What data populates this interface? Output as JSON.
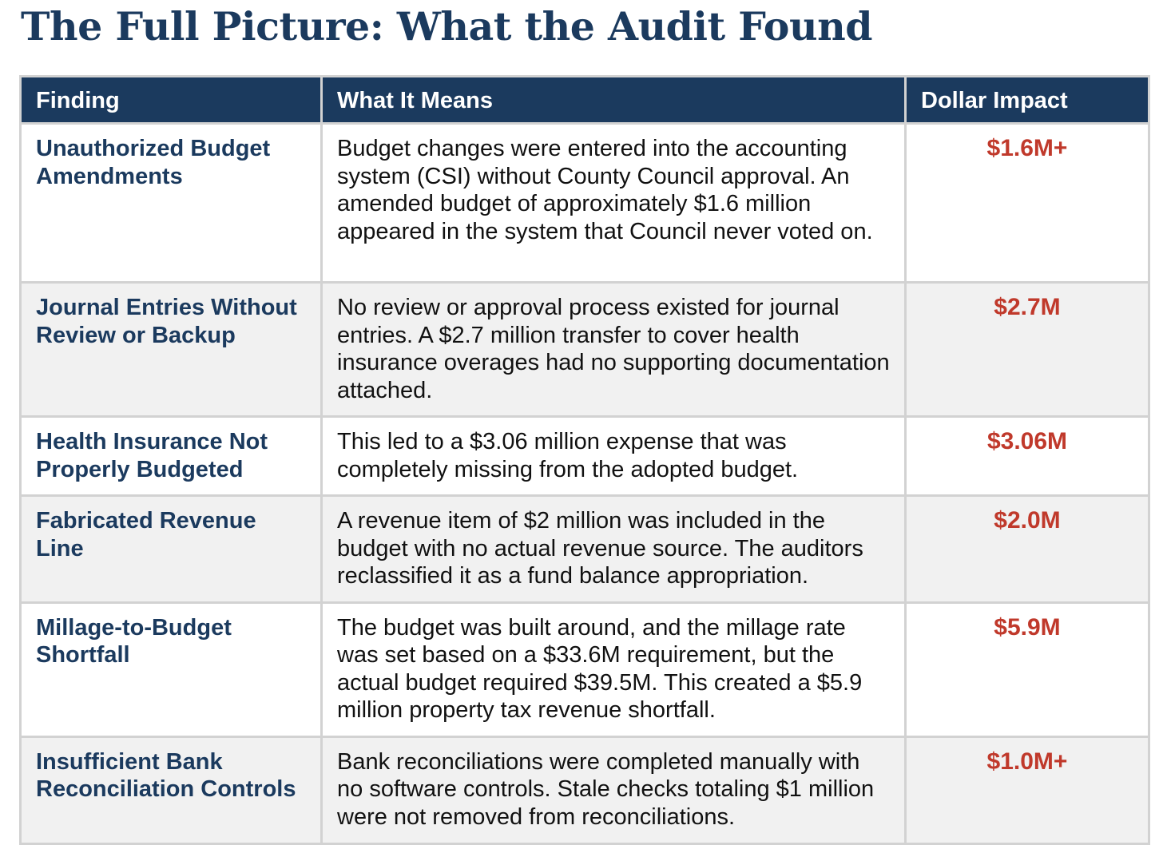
{
  "title": "The Full Picture: What the Audit Found",
  "table": {
    "headers": [
      "Finding",
      "What It Means",
      "Dollar Impact"
    ],
    "rows": [
      {
        "finding": "Unauthorized Budget Amendments",
        "meaning": "Budget changes were entered into the accounting system (CSI) without County Council approval. An amended budget of approximately $1.6 million appeared in the system that Council never voted on.",
        "impact": "$1.6M+"
      },
      {
        "finding": "Journal Entries Without Review or Backup",
        "meaning": "No review or approval process existed for journal entries. A $2.7 million transfer to cover health insurance overages had no supporting documentation attached.",
        "impact": "$2.7M"
      },
      {
        "finding": "Health Insurance Not Properly Budgeted",
        "meaning": "This led to a $3.06 million expense that was completely missing from the adopted budget.",
        "impact": "$3.06M"
      },
      {
        "finding": "Fabricated Revenue Line",
        "meaning": "A revenue item of $2 million was included in the budget with no actual revenue source. The auditors reclassified it as a fund balance appropriation.",
        "impact": "$2.0M"
      },
      {
        "finding": "Millage-to-Budget Shortfall",
        "meaning": "The budget was built around, and the millage rate was set based on a $33.6M requirement, but the actual budget required $39.5M. This created a $5.9 million property tax revenue shortfall.",
        "impact": "$5.9M"
      },
      {
        "finding": "Insufficient Bank Reconciliation Controls",
        "meaning": "Bank reconciliations were completed manually with no software controls. Stale checks totaling $1 million were not removed from reconciliations.",
        "impact": "$1.0M+"
      }
    ]
  },
  "colors": {
    "navy": "#1b3a5e",
    "impact_red": "#c0392b",
    "row_alt": "#f1f1f1",
    "border": "#d2d2d2"
  }
}
